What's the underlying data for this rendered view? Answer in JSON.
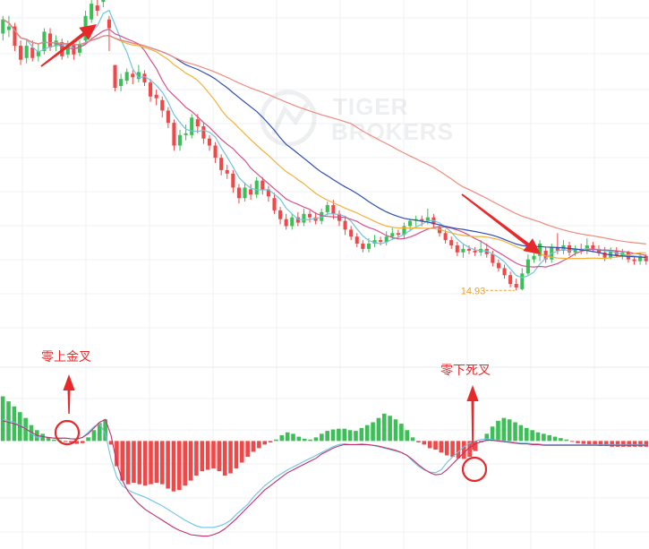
{
  "watermark": {
    "line1": "TIGER",
    "line2": "BROKERS"
  },
  "colors": {
    "up": "#3cbf56",
    "down": "#f04848",
    "ma5": "#6fc5e0",
    "ma10": "#d6538a",
    "ma20": "#f3b13c",
    "ma30": "#2f4fb3",
    "ma60": "#f08a7e",
    "dif": "#6cc3e4",
    "dea": "#c2306e",
    "annotation": "#e8292b",
    "low_label": "#f39c1c"
  },
  "annotations": {
    "zero_above_golden_cross": "零上金叉",
    "zero_below_death_cross": "零下死叉",
    "low_price": "14.93"
  },
  "chart_data": [
    {
      "type": "candlestick",
      "panel": "price",
      "low_label": "14.93",
      "overlays": [
        "ma5",
        "ma10",
        "ma20",
        "ma30",
        "ma60"
      ],
      "grid": true,
      "yrange": [
        13,
        31
      ],
      "candles": [
        [
          29.6,
          30.4,
          30.6,
          29.2
        ],
        [
          29.8,
          30.0,
          30.6,
          29.4
        ],
        [
          30.0,
          28.9,
          30.2,
          28.6
        ],
        [
          28.9,
          28.1,
          29.2,
          27.8
        ],
        [
          28.2,
          28.9,
          29.2,
          27.9
        ],
        [
          28.8,
          28.2,
          29.2,
          28.0
        ],
        [
          28.3,
          28.6,
          29.0,
          28.0
        ],
        [
          28.6,
          29.7,
          29.9,
          28.4
        ],
        [
          29.6,
          28.8,
          29.9,
          28.6
        ],
        [
          28.9,
          29.2,
          29.5,
          28.6
        ],
        [
          29.1,
          28.3,
          29.3,
          28.1
        ],
        [
          28.4,
          29.0,
          29.2,
          28.2
        ],
        [
          29.0,
          28.4,
          29.2,
          28.1
        ],
        [
          28.5,
          29.0,
          29.2,
          28.3
        ],
        [
          29.2,
          30.6,
          30.9,
          29.0
        ],
        [
          30.4,
          31.3,
          31.5,
          30.2
        ],
        [
          31.2,
          30.9,
          31.6,
          30.6
        ],
        [
          31.4,
          31.9,
          32.1,
          31.1
        ],
        [
          30.4,
          29.9,
          30.6,
          28.6
        ],
        [
          27.8,
          26.5,
          27.8,
          26.3
        ],
        [
          26.6,
          27.0,
          27.3,
          26.3
        ],
        [
          26.9,
          27.4,
          27.6,
          26.7
        ],
        [
          27.3,
          27.1,
          27.5,
          26.7
        ],
        [
          27.0,
          27.4,
          27.8,
          26.8
        ],
        [
          27.3,
          26.8,
          27.5,
          26.6
        ],
        [
          26.8,
          26.0,
          27.0,
          25.7
        ],
        [
          26.1,
          25.9,
          26.4,
          25.5
        ],
        [
          25.8,
          25.2,
          26.0,
          24.8
        ],
        [
          25.2,
          24.5,
          25.4,
          24.2
        ],
        [
          24.5,
          23.2,
          24.7,
          22.9
        ],
        [
          23.2,
          23.8,
          24.1,
          22.9
        ],
        [
          23.8,
          23.9,
          24.4,
          23.5
        ],
        [
          23.8,
          24.8,
          25.0,
          23.6
        ],
        [
          24.7,
          24.3,
          25.0,
          23.9
        ],
        [
          24.3,
          23.6,
          24.5,
          23.3
        ],
        [
          23.6,
          23.2,
          23.8,
          22.9
        ],
        [
          23.2,
          22.5,
          23.4,
          22.2
        ],
        [
          22.5,
          21.8,
          22.7,
          21.5
        ],
        [
          21.8,
          21.6,
          22.1,
          21.3
        ],
        [
          21.6,
          20.8,
          21.8,
          20.5
        ],
        [
          20.8,
          20.2,
          21.0,
          19.9
        ],
        [
          20.2,
          20.8,
          21.1,
          20.0
        ],
        [
          20.7,
          20.4,
          21.0,
          20.1
        ],
        [
          20.4,
          21.2,
          21.4,
          20.2
        ],
        [
          21.2,
          20.7,
          21.4,
          20.4
        ],
        [
          20.7,
          20.3,
          20.9,
          20.0
        ],
        [
          20.2,
          19.5,
          20.5,
          19.3
        ],
        [
          19.5,
          19.0,
          19.7,
          18.7
        ],
        [
          19.0,
          18.6,
          19.3,
          18.4
        ],
        [
          18.6,
          19.1,
          19.3,
          18.4
        ],
        [
          19.1,
          18.8,
          19.4,
          18.6
        ],
        [
          18.8,
          19.3,
          19.6,
          18.6
        ],
        [
          19.3,
          19.1,
          19.5,
          18.8
        ],
        [
          19.1,
          18.9,
          19.4,
          18.7
        ],
        [
          18.9,
          19.4,
          19.6,
          18.7
        ],
        [
          19.4,
          19.8,
          20.0,
          19.2
        ],
        [
          19.8,
          19.3,
          20.1,
          19.0
        ],
        [
          19.3,
          18.9,
          19.5,
          18.6
        ],
        [
          18.9,
          18.4,
          19.1,
          18.1
        ],
        [
          18.4,
          18.0,
          18.6,
          17.8
        ],
        [
          18.0,
          17.6,
          18.2,
          17.4
        ],
        [
          17.6,
          17.3,
          17.8,
          17.1
        ],
        [
          17.3,
          17.6,
          17.9,
          17.1
        ],
        [
          17.6,
          17.8,
          18.1,
          17.4
        ],
        [
          17.8,
          17.7,
          18.0,
          17.5
        ],
        [
          17.7,
          18.0,
          18.3,
          17.5
        ],
        [
          18.0,
          18.2,
          18.5,
          17.8
        ],
        [
          18.2,
          18.1,
          18.4,
          17.9
        ],
        [
          18.1,
          18.6,
          18.8,
          17.9
        ],
        [
          18.6,
          18.9,
          19.0,
          18.3
        ],
        [
          18.9,
          19.0,
          19.2,
          18.6
        ],
        [
          19.0,
          18.9,
          19.2,
          18.6
        ],
        [
          18.9,
          19.1,
          19.6,
          18.7
        ],
        [
          19.1,
          18.7,
          19.3,
          18.5
        ],
        [
          18.5,
          18.2,
          18.7,
          18.0
        ],
        [
          18.2,
          17.8,
          18.4,
          17.6
        ],
        [
          17.8,
          17.5,
          18.0,
          17.3
        ],
        [
          17.5,
          17.1,
          17.7,
          16.9
        ],
        [
          17.1,
          17.3,
          17.6,
          16.8
        ],
        [
          17.3,
          17.2,
          17.5,
          17.0
        ],
        [
          17.2,
          17.1,
          17.4,
          16.9
        ],
        [
          17.1,
          17.3,
          17.8,
          16.9
        ],
        [
          17.3,
          17.0,
          17.6,
          16.8
        ],
        [
          17.0,
          16.5,
          17.2,
          16.3
        ],
        [
          16.5,
          16.2,
          16.7,
          16.0
        ],
        [
          16.2,
          15.8,
          16.4,
          15.6
        ],
        [
          15.8,
          15.3,
          16.0,
          15.1
        ],
        [
          15.3,
          15.1,
          15.6,
          14.93
        ],
        [
          15.0,
          15.9,
          16.2,
          14.93
        ],
        [
          15.9,
          16.7,
          17.0,
          15.8
        ],
        [
          16.7,
          16.9,
          17.4,
          16.5
        ],
        [
          16.9,
          17.6,
          17.8,
          16.6
        ],
        [
          17.2,
          16.7,
          17.4,
          16.5
        ],
        [
          16.7,
          17.4,
          17.6,
          16.5
        ],
        [
          17.4,
          17.2,
          18.2,
          17.0
        ],
        [
          17.2,
          17.5,
          17.8,
          17.0
        ],
        [
          17.5,
          17.1,
          17.7,
          16.9
        ],
        [
          17.1,
          17.3,
          17.5,
          16.9
        ],
        [
          17.3,
          17.2,
          17.6,
          17.0
        ],
        [
          17.2,
          17.5,
          17.9,
          17.0
        ],
        [
          17.5,
          17.3,
          17.7,
          17.1
        ],
        [
          17.3,
          17.1,
          17.5,
          16.9
        ],
        [
          17.1,
          16.8,
          17.4,
          16.6
        ],
        [
          16.8,
          17.2,
          17.4,
          16.7
        ],
        [
          17.2,
          16.9,
          17.4,
          16.8
        ],
        [
          16.9,
          17.1,
          17.3,
          16.7
        ],
        [
          17.1,
          16.7,
          17.2,
          16.5
        ],
        [
          16.7,
          16.6,
          16.9,
          16.4
        ],
        [
          16.6,
          16.9,
          17.1,
          16.4
        ],
        [
          16.9,
          16.6,
          17.0,
          16.4
        ]
      ]
    },
    {
      "type": "macd",
      "panel": "indicator",
      "series_keys": [
        "dif",
        "dea",
        "hist"
      ],
      "hist": [
        0.62,
        0.55,
        0.48,
        0.4,
        0.32,
        0.22,
        0.15,
        0.1,
        0.05,
        0.02,
        0.01,
        -0.01,
        -0.02,
        -0.04,
        -0.03,
        0.05,
        0.15,
        0.25,
        0.3,
        -0.05,
        -0.35,
        -0.55,
        -0.6,
        -0.58,
        -0.6,
        -0.62,
        -0.6,
        -0.58,
        -0.6,
        -0.66,
        -0.7,
        -0.68,
        -0.62,
        -0.55,
        -0.48,
        -0.42,
        -0.4,
        -0.38,
        -0.42,
        -0.48,
        -0.45,
        -0.38,
        -0.3,
        -0.22,
        -0.15,
        -0.1,
        -0.05,
        -0.02,
        0.02,
        0.08,
        0.12,
        0.1,
        0.06,
        0.03,
        0.02,
        0.05,
        0.1,
        0.14,
        0.16,
        0.17,
        0.17,
        0.15,
        0.14,
        0.18,
        0.22,
        0.26,
        0.32,
        0.38,
        0.35,
        0.3,
        0.24,
        0.15,
        0.05,
        -0.02,
        -0.05,
        -0.1,
        -0.12,
        -0.16,
        -0.2,
        -0.22,
        -0.24,
        -0.25,
        -0.22,
        -0.14,
        -0.02,
        0.1,
        0.2,
        0.28,
        0.32,
        0.3,
        0.26,
        0.22,
        0.18,
        0.15,
        0.12,
        0.1,
        0.08,
        0.06,
        0.04,
        0.02,
        -0.01,
        -0.03,
        -0.04,
        -0.05,
        -0.06,
        -0.07,
        -0.07,
        -0.08,
        -0.08,
        -0.08,
        -0.08,
        -0.08,
        -0.08,
        -0.08
      ],
      "dif": [
        0.3,
        0.28,
        0.26,
        0.22,
        0.18,
        0.1,
        0.05,
        0.06,
        0.05,
        0.04,
        0.03,
        0.04,
        0.03,
        0.02,
        0.05,
        0.12,
        0.2,
        0.24,
        0.1,
        -0.25,
        -0.5,
        -0.62,
        -0.68,
        -0.72,
        -0.75,
        -0.78,
        -0.82,
        -0.86,
        -0.9,
        -0.95,
        -1.0,
        -1.05,
        -1.1,
        -1.14,
        -1.18,
        -1.2,
        -1.2,
        -1.2,
        -1.18,
        -1.15,
        -1.1,
        -1.02,
        -0.95,
        -0.88,
        -0.78,
        -0.7,
        -0.62,
        -0.56,
        -0.5,
        -0.45,
        -0.4,
        -0.36,
        -0.32,
        -0.28,
        -0.24,
        -0.2,
        -0.16,
        -0.12,
        -0.08,
        -0.05,
        -0.04,
        -0.05,
        -0.05,
        -0.04,
        -0.05,
        -0.06,
        -0.08,
        -0.1,
        -0.12,
        -0.14,
        -0.16,
        -0.2,
        -0.28,
        -0.35,
        -0.4,
        -0.43,
        -0.44,
        -0.4,
        -0.3,
        -0.22,
        -0.15,
        -0.08,
        -0.03,
        0.0,
        0.02,
        0.03,
        0.02,
        0.01,
        0.0,
        -0.01,
        -0.02,
        -0.03,
        -0.03,
        -0.04,
        -0.04,
        -0.05,
        -0.05,
        -0.05,
        -0.05,
        -0.05,
        -0.05,
        -0.05,
        -0.05,
        -0.05,
        -0.05,
        -0.05,
        -0.05,
        -0.05,
        -0.05,
        -0.05,
        -0.05,
        -0.05,
        -0.05,
        -0.05
      ],
      "dea": [
        0.28,
        0.26,
        0.24,
        0.21,
        0.17,
        0.12,
        0.08,
        0.06,
        0.05,
        0.04,
        0.04,
        0.04,
        0.03,
        0.03,
        0.05,
        0.1,
        0.18,
        0.26,
        0.3,
        0.08,
        -0.3,
        -0.55,
        -0.7,
        -0.8,
        -0.88,
        -0.95,
        -1.0,
        -1.05,
        -1.1,
        -1.15,
        -1.2,
        -1.24,
        -1.27,
        -1.3,
        -1.31,
        -1.32,
        -1.32,
        -1.3,
        -1.27,
        -1.22,
        -1.15,
        -1.08,
        -1.0,
        -0.92,
        -0.84,
        -0.76,
        -0.68,
        -0.62,
        -0.56,
        -0.5,
        -0.44,
        -0.4,
        -0.36,
        -0.32,
        -0.28,
        -0.24,
        -0.18,
        -0.14,
        -0.1,
        -0.07,
        -0.05,
        -0.05,
        -0.05,
        -0.05,
        -0.05,
        -0.06,
        -0.07,
        -0.09,
        -0.11,
        -0.13,
        -0.16,
        -0.2,
        -0.26,
        -0.33,
        -0.39,
        -0.44,
        -0.47,
        -0.46,
        -0.4,
        -0.32,
        -0.24,
        -0.16,
        -0.09,
        -0.04,
        -0.01,
        0.01,
        0.01,
        0.0,
        -0.01,
        -0.02,
        -0.03,
        -0.04,
        -0.04,
        -0.05,
        -0.05,
        -0.06,
        -0.06,
        -0.06,
        -0.06,
        -0.06,
        -0.06,
        -0.06,
        -0.06,
        -0.06,
        -0.06,
        -0.06,
        -0.06,
        -0.06,
        -0.06,
        -0.06,
        -0.06,
        -0.06,
        -0.06,
        -0.06
      ],
      "yrange": [
        -1.4,
        0.9
      ]
    }
  ]
}
